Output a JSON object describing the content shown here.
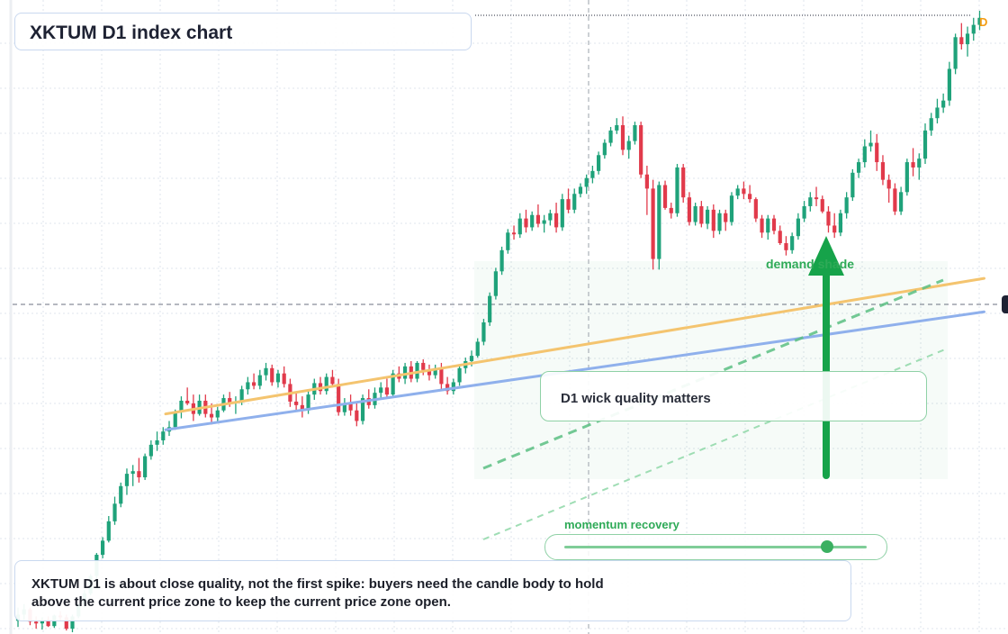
{
  "title": "XKTUM D1 index chart",
  "callout": "D1 wick quality matters",
  "zone_label": "demand shade",
  "momentum": {
    "label": "momentum recovery",
    "value": 0.87
  },
  "caption": {
    "line1": "XKTUM D1 is about close quality, not the first spike: buyers need the candle body to hold",
    "line2": "above the current price zone to keep the current price zone open."
  },
  "marker": "D",
  "colors": {
    "up": "#1fa27a",
    "down": "#e13a4b",
    "trend_orange": "#f4c46f",
    "trend_blue": "#8fb0ec",
    "green": "#2eaa57",
    "grid": "#dfe4ec"
  },
  "chart_data": {
    "type": "candlestick",
    "title": "XKTUM D1 index chart",
    "candles": [
      [
        0,
        5,
        20,
        -2,
        12
      ],
      [
        1,
        12,
        24,
        6,
        18
      ],
      [
        2,
        18,
        20,
        0,
        4
      ],
      [
        3,
        4,
        10,
        -4,
        2
      ],
      [
        4,
        2,
        9,
        -5,
        6
      ],
      [
        5,
        6,
        10,
        -2,
        -1
      ],
      [
        6,
        -1,
        12,
        -3,
        11
      ],
      [
        7,
        11,
        16,
        5,
        9
      ],
      [
        8,
        9,
        12,
        -6,
        -4
      ],
      [
        9,
        -4,
        12,
        -8,
        10
      ],
      [
        10,
        10,
        26,
        8,
        24
      ],
      [
        11,
        24,
        40,
        20,
        36
      ],
      [
        12,
        36,
        58,
        34,
        56
      ],
      [
        13,
        56,
        82,
        52,
        80
      ],
      [
        14,
        80,
        100,
        76,
        96
      ],
      [
        15,
        96,
        124,
        94,
        118
      ],
      [
        16,
        118,
        146,
        114,
        138
      ],
      [
        17,
        138,
        162,
        134,
        158
      ],
      [
        18,
        158,
        178,
        148,
        172
      ],
      [
        19,
        172,
        182,
        158,
        175
      ],
      [
        20,
        175,
        190,
        162,
        168
      ],
      [
        21,
        168,
        195,
        165,
        192
      ],
      [
        22,
        192,
        210,
        188,
        205
      ],
      [
        23,
        205,
        220,
        198,
        210
      ],
      [
        24,
        210,
        225,
        205,
        220
      ],
      [
        25,
        220,
        232,
        215,
        225
      ],
      [
        26,
        225,
        245,
        222,
        242
      ],
      [
        27,
        242,
        260,
        235,
        255
      ],
      [
        28,
        255,
        270,
        250,
        252
      ],
      [
        29,
        252,
        262,
        232,
        240
      ],
      [
        30,
        240,
        262,
        238,
        255
      ],
      [
        31,
        255,
        262,
        236,
        240
      ],
      [
        32,
        240,
        252,
        228,
        236
      ],
      [
        33,
        236,
        248,
        230,
        244
      ],
      [
        34,
        244,
        262,
        242,
        258
      ],
      [
        35,
        258,
        265,
        248,
        252
      ],
      [
        36,
        252,
        260,
        240,
        254
      ],
      [
        37,
        254,
        272,
        250,
        268
      ],
      [
        38,
        268,
        282,
        262,
        276
      ],
      [
        39,
        276,
        286,
        268,
        272
      ],
      [
        40,
        272,
        290,
        268,
        284
      ],
      [
        41,
        284,
        298,
        278,
        292
      ],
      [
        42,
        292,
        296,
        272,
        276
      ],
      [
        43,
        276,
        290,
        270,
        286
      ],
      [
        44,
        286,
        294,
        270,
        274
      ],
      [
        45,
        274,
        280,
        248,
        254
      ],
      [
        46,
        254,
        264,
        244,
        250
      ],
      [
        47,
        250,
        260,
        236,
        244
      ],
      [
        48,
        244,
        266,
        240,
        262
      ],
      [
        49,
        262,
        280,
        256,
        275
      ],
      [
        50,
        275,
        282,
        262,
        266
      ],
      [
        51,
        266,
        286,
        262,
        282
      ],
      [
        52,
        282,
        290,
        270,
        274
      ],
      [
        53,
        274,
        280,
        238,
        242
      ],
      [
        54,
        242,
        258,
        238,
        252
      ],
      [
        55,
        252,
        262,
        238,
        244
      ],
      [
        56,
        244,
        252,
        226,
        232
      ],
      [
        57,
        232,
        262,
        228,
        258
      ],
      [
        58,
        258,
        268,
        246,
        250
      ],
      [
        59,
        250,
        270,
        246,
        264
      ],
      [
        60,
        264,
        276,
        258,
        270
      ],
      [
        61,
        270,
        280,
        258,
        262
      ],
      [
        62,
        262,
        290,
        258,
        286
      ],
      [
        63,
        286,
        294,
        276,
        280
      ],
      [
        64,
        280,
        298,
        274,
        294
      ],
      [
        65,
        294,
        300,
        276,
        280
      ],
      [
        66,
        280,
        300,
        276,
        298
      ],
      [
        67,
        298,
        302,
        284,
        290
      ],
      [
        68,
        290,
        296,
        278,
        284
      ],
      [
        69,
        284,
        296,
        280,
        292
      ],
      [
        70,
        292,
        298,
        268,
        274
      ],
      [
        71,
        274,
        282,
        262,
        266
      ],
      [
        72,
        266,
        280,
        262,
        276
      ],
      [
        73,
        276,
        296,
        272,
        292
      ],
      [
        74,
        292,
        304,
        286,
        300
      ],
      [
        75,
        300,
        312,
        294,
        306
      ],
      [
        76,
        306,
        326,
        304,
        322
      ],
      [
        77,
        322,
        348,
        318,
        344
      ],
      [
        78,
        344,
        378,
        340,
        374
      ],
      [
        79,
        374,
        406,
        370,
        402
      ],
      [
        80,
        402,
        430,
        398,
        426
      ],
      [
        81,
        426,
        450,
        422,
        446
      ],
      [
        82,
        446,
        454,
        438,
        444
      ],
      [
        83,
        444,
        468,
        440,
        462
      ],
      [
        84,
        462,
        472,
        446,
        452
      ],
      [
        85,
        452,
        470,
        448,
        466
      ],
      [
        86,
        466,
        478,
        452,
        456
      ],
      [
        87,
        456,
        466,
        446,
        460
      ],
      [
        88,
        460,
        472,
        454,
        468
      ],
      [
        89,
        468,
        480,
        446,
        452
      ],
      [
        90,
        452,
        490,
        448,
        484
      ],
      [
        91,
        484,
        496,
        468,
        472
      ],
      [
        92,
        472,
        496,
        468,
        490
      ],
      [
        93,
        490,
        502,
        486,
        498
      ],
      [
        94,
        498,
        512,
        490,
        508
      ],
      [
        95,
        508,
        522,
        502,
        516
      ],
      [
        96,
        516,
        538,
        512,
        534
      ],
      [
        97,
        534,
        552,
        530,
        548
      ],
      [
        98,
        548,
        566,
        544,
        562
      ],
      [
        99,
        562,
        576,
        558,
        568
      ],
      [
        100,
        568,
        578,
        534,
        540
      ],
      [
        101,
        540,
        556,
        530,
        550
      ],
      [
        102,
        550,
        572,
        546,
        568
      ],
      [
        103,
        568,
        572,
        508,
        512
      ],
      [
        104,
        512,
        522,
        466,
        496
      ],
      [
        105,
        496,
        506,
        404,
        416
      ],
      [
        106,
        416,
        504,
        404,
        500
      ],
      [
        107,
        500,
        505,
        472,
        474
      ],
      [
        108,
        474,
        480,
        462,
        468
      ],
      [
        109,
        468,
        524,
        464,
        520
      ],
      [
        110,
        520,
        524,
        480,
        486
      ],
      [
        111,
        486,
        492,
        454,
        458
      ],
      [
        112,
        458,
        480,
        454,
        476
      ],
      [
        113,
        476,
        482,
        452,
        456
      ],
      [
        114,
        456,
        476,
        450,
        472
      ],
      [
        115,
        472,
        478,
        440,
        448
      ],
      [
        116,
        448,
        472,
        444,
        468
      ],
      [
        117,
        468,
        472,
        448,
        458
      ],
      [
        118,
        458,
        492,
        454,
        488
      ],
      [
        119,
        488,
        500,
        484,
        496
      ],
      [
        120,
        496,
        504,
        484,
        490
      ],
      [
        121,
        490,
        500,
        480,
        484
      ],
      [
        122,
        484,
        486,
        458,
        462
      ],
      [
        123,
        462,
        466,
        440,
        446
      ],
      [
        124,
        446,
        466,
        438,
        462
      ],
      [
        125,
        462,
        466,
        444,
        448
      ],
      [
        126,
        448,
        454,
        432,
        434
      ],
      [
        127,
        434,
        442,
        420,
        426
      ],
      [
        128,
        426,
        446,
        422,
        442
      ],
      [
        129,
        442,
        468,
        438,
        462
      ],
      [
        130,
        462,
        482,
        458,
        476
      ],
      [
        131,
        476,
        492,
        470,
        486
      ],
      [
        132,
        486,
        498,
        476,
        484
      ],
      [
        133,
        484,
        488,
        468,
        470
      ],
      [
        134,
        470,
        476,
        446,
        454
      ],
      [
        135,
        454,
        468,
        440,
        446
      ],
      [
        136,
        446,
        472,
        442,
        468
      ],
      [
        137,
        468,
        492,
        462,
        486
      ],
      [
        138,
        486,
        518,
        482,
        514
      ],
      [
        139,
        514,
        530,
        508,
        526
      ],
      [
        140,
        526,
        552,
        520,
        544
      ],
      [
        141,
        544,
        562,
        538,
        548
      ],
      [
        142,
        548,
        558,
        516,
        526
      ],
      [
        143,
        526,
        534,
        500,
        506
      ],
      [
        144,
        506,
        512,
        480,
        496
      ],
      [
        145,
        496,
        502,
        466,
        470
      ],
      [
        146,
        470,
        498,
        466,
        492
      ],
      [
        147,
        492,
        530,
        488,
        526
      ],
      [
        148,
        526,
        542,
        510,
        520
      ],
      [
        149,
        520,
        536,
        506,
        530
      ],
      [
        150,
        530,
        570,
        524,
        562
      ],
      [
        151,
        562,
        582,
        556,
        576
      ],
      [
        152,
        576,
        598,
        570,
        588
      ],
      [
        153,
        588,
        604,
        582,
        596
      ],
      [
        154,
        596,
        640,
        590,
        632
      ],
      [
        155,
        632,
        672,
        626,
        668
      ],
      [
        156,
        668,
        684,
        654,
        660
      ],
      [
        157,
        660,
        680,
        646,
        672
      ],
      [
        158,
        672,
        690,
        664,
        682
      ],
      [
        159,
        682,
        698,
        676,
        690
      ]
    ],
    "price_range": [
      -10,
      700
    ],
    "trendlines": [
      {
        "name": "orange",
        "from": [
          25,
          240
        ],
        "to": [
          159,
          394
        ]
      },
      {
        "name": "blue",
        "from": [
          25,
          222
        ],
        "to": [
          159,
          356
        ]
      }
    ],
    "annotations": [
      "demand shade",
      "D1 wick quality matters",
      "momentum recovery"
    ],
    "grid": true
  }
}
